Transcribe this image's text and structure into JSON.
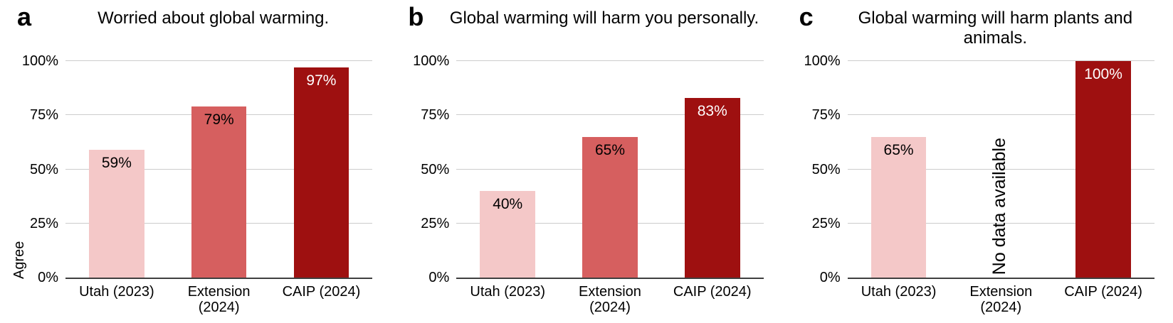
{
  "figure": {
    "background": "#ffffff",
    "gridline_color": "#cccccc",
    "axis_line_color": "#3f3f3f"
  },
  "chart_data": [
    {
      "type": "bar",
      "panel_letter": "a",
      "title": "Worried about global warming.",
      "xlabel": "",
      "ylabel": "Agree",
      "categories": [
        "Utah (2023)",
        "Extension (2024)",
        "CAIP (2024)"
      ],
      "values": [
        59,
        79,
        97
      ],
      "value_labels": [
        "59%",
        "79%",
        "97%"
      ],
      "bar_colors": [
        "#f4c8c8",
        "#d65f5f",
        "#9e1010"
      ],
      "value_label_colors": [
        "#000000",
        "#000000",
        "#ffffff"
      ],
      "ylim": [
        0,
        100
      ],
      "yticks": [
        {
          "label": "0%",
          "value": 0
        },
        {
          "label": "25%",
          "value": 25
        },
        {
          "label": "50%",
          "value": 50
        },
        {
          "label": "75%",
          "value": 75
        },
        {
          "label": "100%",
          "value": 100
        }
      ],
      "grid": true,
      "legend": null
    },
    {
      "type": "bar",
      "panel_letter": "b",
      "title": "Global warming will harm you personally.",
      "xlabel": "",
      "ylabel": "",
      "categories": [
        "Utah (2023)",
        "Extension (2024)",
        "CAIP (2024)"
      ],
      "values": [
        40,
        65,
        83
      ],
      "value_labels": [
        "40%",
        "65%",
        "83%"
      ],
      "bar_colors": [
        "#f4c8c8",
        "#d65f5f",
        "#9e1010"
      ],
      "value_label_colors": [
        "#000000",
        "#000000",
        "#ffffff"
      ],
      "ylim": [
        0,
        100
      ],
      "yticks": [
        {
          "label": "0%",
          "value": 0
        },
        {
          "label": "25%",
          "value": 25
        },
        {
          "label": "50%",
          "value": 50
        },
        {
          "label": "75%",
          "value": 75
        },
        {
          "label": "100%",
          "value": 100
        }
      ],
      "grid": true,
      "legend": null
    },
    {
      "type": "bar",
      "panel_letter": "c",
      "title": "Global warming will harm plants and animals.",
      "xlabel": "",
      "ylabel": "",
      "categories": [
        "Utah (2023)",
        "Extension (2024)",
        "CAIP (2024)"
      ],
      "values": [
        65,
        null,
        100
      ],
      "value_labels": [
        "65%",
        null,
        "100%"
      ],
      "annotation": "No data available",
      "annotation_slot": 1,
      "bar_colors": [
        "#f4c8c8",
        "#d65f5f",
        "#9e1010"
      ],
      "value_label_colors": [
        "#000000",
        "#000000",
        "#ffffff"
      ],
      "ylim": [
        0,
        100
      ],
      "yticks": [
        {
          "label": "0%",
          "value": 0
        },
        {
          "label": "25%",
          "value": 25
        },
        {
          "label": "50%",
          "value": 50
        },
        {
          "label": "75%",
          "value": 75
        },
        {
          "label": "100%",
          "value": 100
        }
      ],
      "grid": true,
      "legend": null
    }
  ]
}
